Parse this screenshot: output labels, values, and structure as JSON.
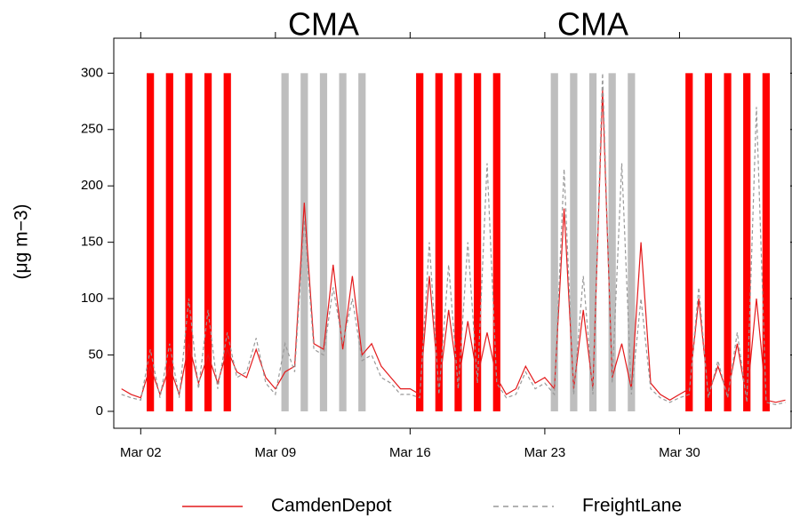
{
  "chart_data": {
    "type": "line",
    "y_label": "(μg m−3)",
    "annotations": [
      "CMA",
      "CMA"
    ],
    "xlim": [
      0.6,
      35.8
    ],
    "ylim": [
      -15,
      331
    ],
    "xticks": [
      {
        "value": 2,
        "label": "Mar 02"
      },
      {
        "value": 9,
        "label": "Mar 09"
      },
      {
        "value": 16,
        "label": "Mar 16"
      },
      {
        "value": 23,
        "label": "Mar 23"
      },
      {
        "value": 30,
        "label": "Mar 30"
      }
    ],
    "yticks": [
      0,
      50,
      100,
      150,
      200,
      250,
      300
    ],
    "periods": [
      {
        "color": "#ff0000",
        "x": [
          2.5,
          3.5,
          4.5,
          5.5,
          6.5
        ],
        "top": 300
      },
      {
        "color": "#bebebe",
        "x": [
          9.5,
          10.5,
          11.5,
          12.5,
          13.5
        ],
        "top": 300
      },
      {
        "color": "#ff0000",
        "x": [
          16.5,
          17.5,
          18.5,
          19.5,
          20.5
        ],
        "top": 300
      },
      {
        "color": "#bebebe",
        "x": [
          23.5,
          24.5,
          25.5,
          26.5,
          27.5
        ],
        "top": 300
      },
      {
        "color": "#ff0000",
        "x": [
          30.5,
          31.5,
          32.5,
          33.5,
          34.5
        ],
        "top": 300
      }
    ],
    "x": [
      1.0,
      1.5,
      2.0,
      2.5,
      3.0,
      3.5,
      4.0,
      4.5,
      5.0,
      5.5,
      6.0,
      6.5,
      7.0,
      7.5,
      8.0,
      8.5,
      9.0,
      9.5,
      10.0,
      10.5,
      11.0,
      11.5,
      12.0,
      12.5,
      13.0,
      13.5,
      14.0,
      14.5,
      15.0,
      15.5,
      16.0,
      16.5,
      17.0,
      17.5,
      18.0,
      18.5,
      19.0,
      19.5,
      20.0,
      20.5,
      21.0,
      21.5,
      22.0,
      22.5,
      23.0,
      23.5,
      24.0,
      24.5,
      25.0,
      25.5,
      26.0,
      26.5,
      27.0,
      27.5,
      28.0,
      28.5,
      29.0,
      29.5,
      30.0,
      30.5,
      31.0,
      31.5,
      32.0,
      32.5,
      33.0,
      33.5,
      34.0,
      34.5,
      35.0,
      35.5
    ],
    "series": [
      {
        "name": "CamdenDepot",
        "color": "#e31a1c",
        "dash": false,
        "values": [
          20,
          15,
          12,
          40,
          15,
          40,
          15,
          60,
          25,
          50,
          25,
          55,
          35,
          30,
          55,
          30,
          20,
          35,
          40,
          185,
          60,
          55,
          130,
          55,
          120,
          50,
          60,
          40,
          30,
          20,
          20,
          15,
          120,
          20,
          90,
          25,
          80,
          30,
          70,
          30,
          15,
          20,
          40,
          25,
          30,
          20,
          180,
          20,
          90,
          20,
          285,
          30,
          60,
          20,
          150,
          25,
          15,
          10,
          15,
          20,
          100,
          15,
          40,
          15,
          60,
          10,
          100,
          10,
          8,
          10
        ]
      },
      {
        "name": "FreightLane",
        "color": "#999999",
        "dash": true,
        "values": [
          15,
          12,
          10,
          55,
          12,
          60,
          12,
          100,
          20,
          90,
          20,
          70,
          30,
          35,
          65,
          25,
          15,
          60,
          35,
          170,
          55,
          50,
          110,
          60,
          100,
          45,
          50,
          30,
          25,
          15,
          15,
          12,
          150,
          15,
          130,
          20,
          150,
          25,
          220,
          25,
          12,
          15,
          35,
          20,
          25,
          15,
          215,
          15,
          120,
          15,
          300,
          25,
          220,
          15,
          100,
          20,
          12,
          8,
          12,
          15,
          110,
          12,
          45,
          12,
          70,
          8,
          270,
          8,
          6,
          8
        ]
      }
    ]
  }
}
